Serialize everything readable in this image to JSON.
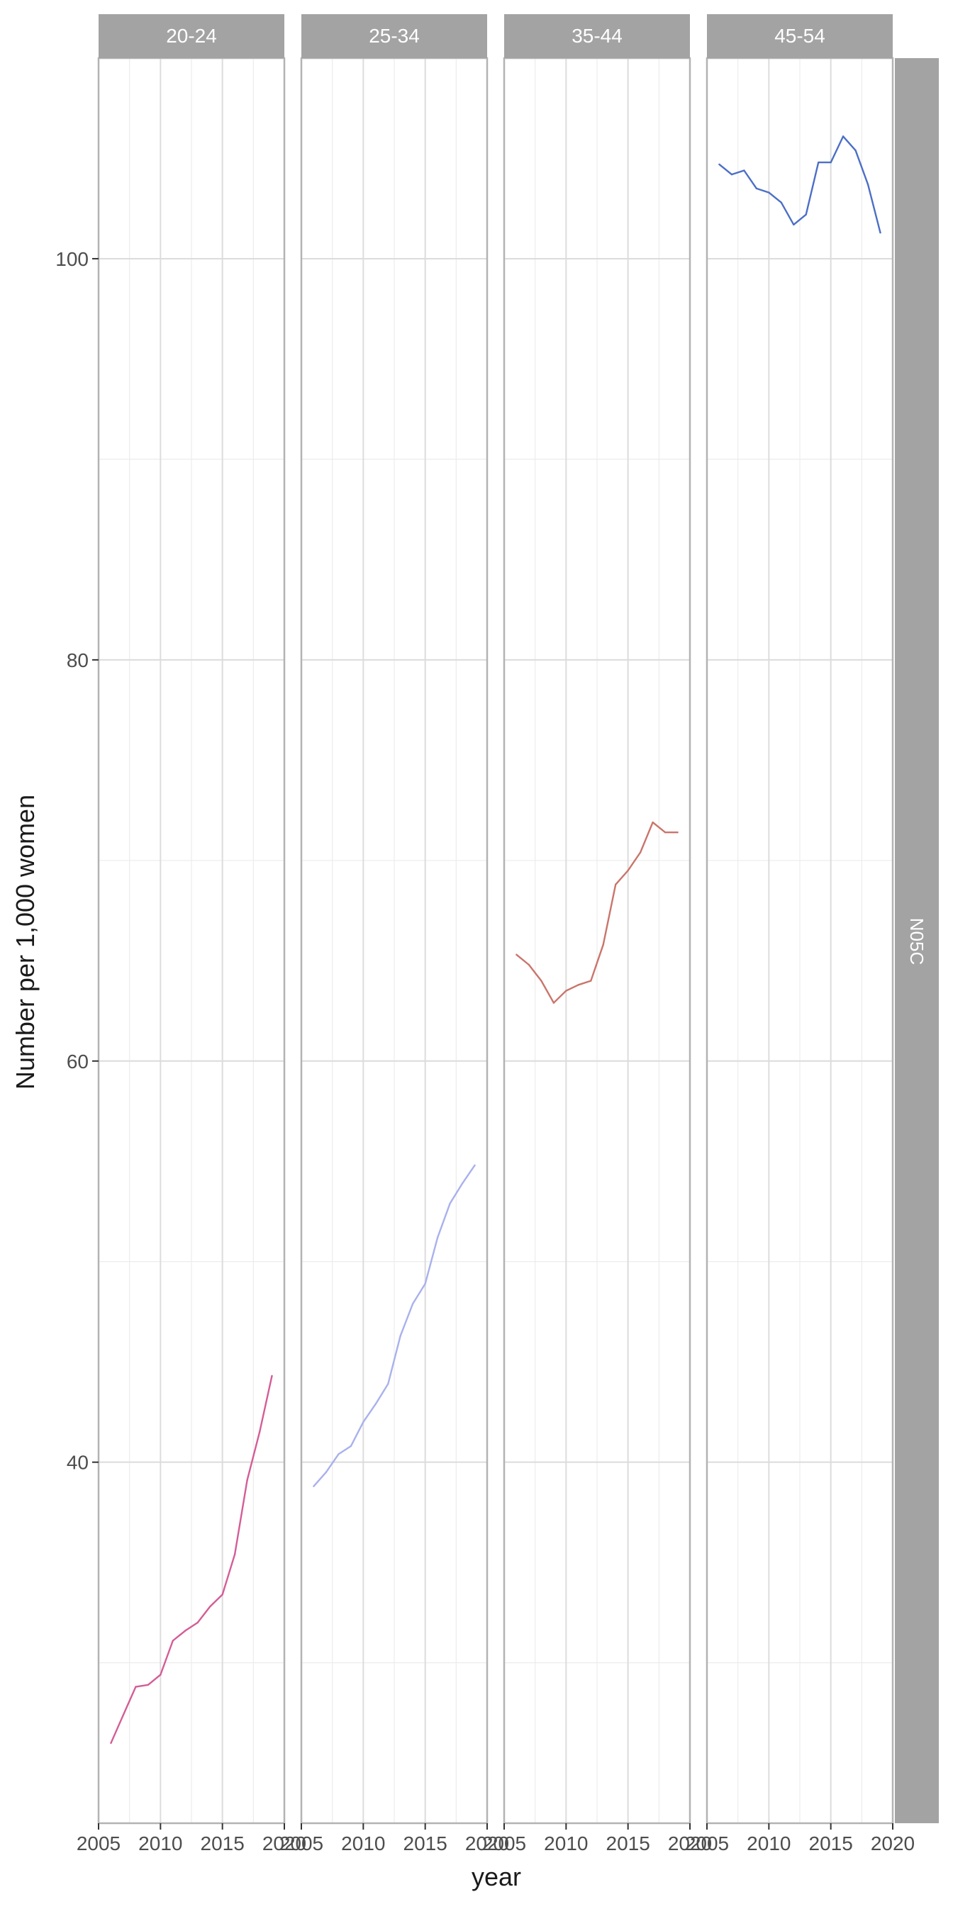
{
  "chart_data": {
    "type": "line",
    "title": "",
    "xlabel": "year",
    "ylabel": "Number per 1,000 women",
    "xlim": [
      2005,
      2020
    ],
    "ylim": [
      22,
      110
    ],
    "x_ticks": [
      2005,
      2010,
      2015,
      2020
    ],
    "x_tick_labels": [
      "2005",
      "2010",
      "2015",
      "2020"
    ],
    "y_ticks": [
      40,
      60,
      80,
      100
    ],
    "y_tick_labels": [
      "40",
      "60",
      "80",
      "100"
    ],
    "grid": true,
    "legend": "none",
    "facet_row_label": "N05C",
    "facets": [
      {
        "label": "20-24",
        "color": "#d45d96",
        "x": [
          2006,
          2007,
          2008,
          2009,
          2010,
          2011,
          2012,
          2013,
          2014,
          2015,
          2016,
          2017,
          2018,
          2019
        ],
        "y": [
          26.0,
          27.4,
          28.8,
          28.9,
          29.4,
          31.1,
          31.6,
          32.0,
          32.8,
          33.4,
          35.4,
          39.1,
          41.5,
          44.3
        ]
      },
      {
        "label": "25-34",
        "color": "#a9b1ed",
        "x": [
          2006,
          2007,
          2008,
          2009,
          2010,
          2011,
          2012,
          2013,
          2014,
          2015,
          2016,
          2017,
          2018,
          2019
        ],
        "y": [
          38.8,
          39.5,
          40.4,
          40.8,
          42.0,
          42.9,
          43.9,
          46.3,
          47.9,
          48.9,
          51.2,
          52.9,
          53.9,
          54.8
        ]
      },
      {
        "label": "35-44",
        "color": "#c9756b",
        "x": [
          2006,
          2007,
          2008,
          2009,
          2010,
          2011,
          2012,
          2013,
          2014,
          2015,
          2016,
          2017,
          2018,
          2019
        ],
        "y": [
          65.3,
          64.8,
          64.0,
          62.9,
          63.5,
          63.8,
          64.0,
          65.8,
          68.8,
          69.5,
          70.4,
          71.9,
          71.4,
          71.4
        ]
      },
      {
        "label": "45-54",
        "color": "#4c6fc6",
        "x": [
          2006,
          2007,
          2008,
          2009,
          2010,
          2011,
          2012,
          2013,
          2014,
          2015,
          2016,
          2017,
          2018,
          2019
        ],
        "y": [
          104.7,
          104.2,
          104.4,
          103.5,
          103.3,
          102.8,
          101.7,
          102.2,
          104.8,
          104.8,
          106.1,
          105.4,
          103.7,
          101.3
        ]
      }
    ]
  }
}
